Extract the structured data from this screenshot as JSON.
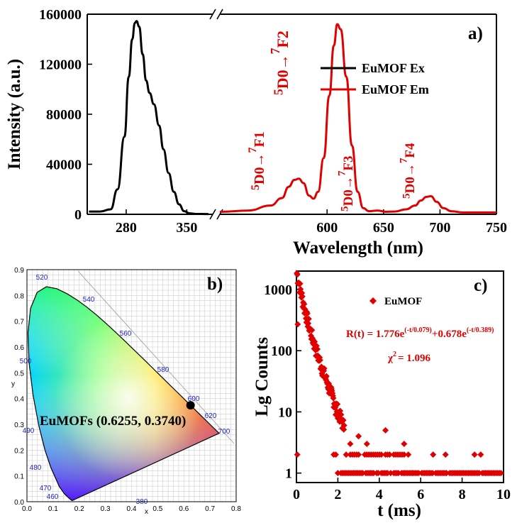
{
  "chart_data": [
    {
      "type": "line",
      "panel_label": "a)",
      "xlabel": "Wavelength (nm)",
      "ylabel": "Intensity (a.u.)",
      "ylim": [
        0,
        160000
      ],
      "y_ticks": [
        "0",
        "40000",
        "80000",
        "120000",
        "160000"
      ],
      "x_segments": [
        {
          "xlim": [
            235,
            380
          ],
          "ticks": [
            "280",
            "350"
          ]
        },
        {
          "xlim": [
            505,
            750
          ],
          "ticks": [
            "600",
            "650",
            "700",
            "750"
          ]
        }
      ],
      "axis_break": true,
      "legend_position": "top-right",
      "series": [
        {
          "name": "EuMOF Ex",
          "color": "#000000",
          "segment": 0,
          "points": [
            [
              237,
              2200
            ],
            [
              250,
              2200
            ],
            [
              262,
              4000
            ],
            [
              270,
              20000
            ],
            [
              278,
              62000
            ],
            [
              283,
              110000
            ],
            [
              287,
              140000
            ],
            [
              290,
              153000
            ],
            [
              292,
              154500
            ],
            [
              295,
              150000
            ],
            [
              299,
              128000
            ],
            [
              303,
              107000
            ],
            [
              307,
              97000
            ],
            [
              312,
              88000
            ],
            [
              318,
              71000
            ],
            [
              323,
              52000
            ],
            [
              329,
              33000
            ],
            [
              335,
              18000
            ],
            [
              341,
              8000
            ],
            [
              347,
              2500
            ],
            [
              353,
              800
            ],
            [
              360,
              300
            ],
            [
              375,
              200
            ]
          ]
        },
        {
          "name": "EuMOF Em",
          "color": "#e00000",
          "segment": 1,
          "points": [
            [
              505,
              2000
            ],
            [
              530,
              3000
            ],
            [
              550,
              7000
            ],
            [
              560,
              13000
            ],
            [
              566,
              22000
            ],
            [
              571,
              27500
            ],
            [
              575,
              28500
            ],
            [
              579,
              25000
            ],
            [
              584,
              15000
            ],
            [
              588,
              12500
            ],
            [
              592,
              18000
            ],
            [
              597,
              45000
            ],
            [
              602,
              95000
            ],
            [
              606,
              135000
            ],
            [
              609,
              152000
            ],
            [
              612,
              148000
            ],
            [
              617,
              110000
            ],
            [
              622,
              55000
            ],
            [
              627,
              18000
            ],
            [
              632,
              5000
            ],
            [
              637,
              2500
            ],
            [
              645,
              3000
            ],
            [
              652,
              2000
            ],
            [
              660,
              2200
            ],
            [
              670,
              4000
            ],
            [
              678,
              7000
            ],
            [
              683,
              11000
            ],
            [
              688,
              14000
            ],
            [
              692,
              14500
            ],
            [
              697,
              10000
            ],
            [
              703,
              5000
            ],
            [
              710,
              2500
            ],
            [
              720,
              1500
            ],
            [
              750,
              1500
            ]
          ]
        }
      ],
      "annotations": [
        {
          "upper": "5",
          "lower": "D0→",
          "sup": "7",
          "tail": "F1"
        },
        {
          "upper": "5",
          "lower": "D0→",
          "sup": "7",
          "tail": "F2"
        },
        {
          "upper": "5",
          "lower": "D0→",
          "sup": "7",
          "tail": "F3"
        },
        {
          "upper": "5",
          "lower": "D0→",
          "sup": "7",
          "tail": "F4"
        }
      ]
    },
    {
      "type": "scatter",
      "subtype": "cie-1931-chromaticity",
      "panel_label": "b)",
      "xlabel": "x",
      "ylabel": "y",
      "xlim": [
        0,
        0.8
      ],
      "ylim": [
        0,
        0.9
      ],
      "x_ticks": [
        "0.0",
        "0.1",
        "0.2",
        "0.3",
        "0.4",
        "0.5",
        "0.6",
        "0.7",
        "0.8"
      ],
      "y_ticks": [
        "0.0",
        "0.1",
        "0.2",
        "0.3",
        "0.4",
        "0.5",
        "0.6",
        "0.7",
        "0.8",
        "0.9"
      ],
      "wavelength_labels": [
        "380",
        "460",
        "470",
        "480",
        "490",
        "500",
        "520",
        "540",
        "560",
        "580",
        "600",
        "620",
        "700"
      ],
      "point": {
        "x": 0.6255,
        "y": 0.374,
        "label": "EuMOFs (0.6255, 0.3740)"
      }
    },
    {
      "type": "scatter",
      "panel_label": "c)",
      "xlabel": "t (ms)",
      "ylabel": "Lg Counts",
      "xlim": [
        0,
        10
      ],
      "ylim": [
        0.7,
        2000
      ],
      "y_scale": "log",
      "x_ticks": [
        "0",
        "2",
        "4",
        "6",
        "8",
        "10"
      ],
      "y_ticks": [
        "1",
        "10",
        "100",
        "1000"
      ],
      "legend_position": "top-center",
      "series": [
        {
          "name": "EuMOF",
          "color": "#e00000",
          "marker": "diamond"
        }
      ],
      "fit": {
        "prefix": "R(t) = 1.776e",
        "exp1": "(-t/0.079)",
        "middle": "+0.678e",
        "exp2": "(-t/0.389)"
      },
      "chi": {
        "label": "χ",
        "sup": "2",
        "value": "= 1.096"
      }
    }
  ]
}
